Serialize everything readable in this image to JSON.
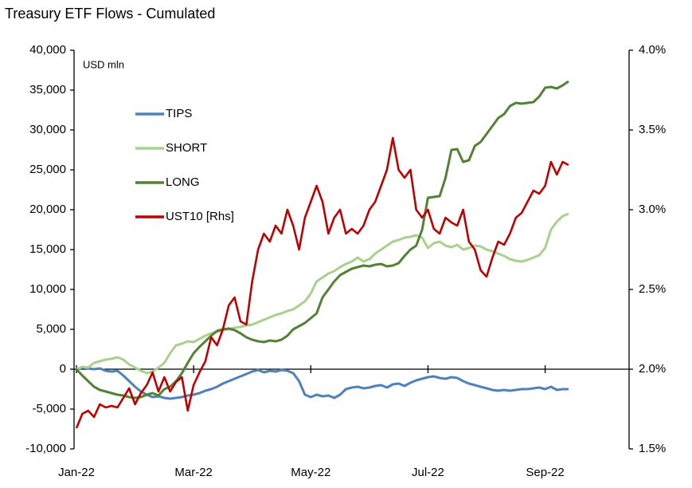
{
  "chart_data": {
    "type": "line",
    "title": "Treasury ETF Flows - Cumulated",
    "y_label": "USD mln",
    "legend": "upper-left",
    "categories": [
      "Jan-22",
      null,
      null,
      null,
      null,
      null,
      null,
      null,
      null,
      null,
      null,
      null,
      null,
      null,
      null,
      null,
      null,
      null,
      null,
      null,
      "Mar-22",
      null,
      null,
      null,
      null,
      null,
      null,
      null,
      null,
      null,
      null,
      null,
      null,
      null,
      null,
      null,
      null,
      null,
      null,
      null,
      "May-22",
      null,
      null,
      null,
      null,
      null,
      null,
      null,
      null,
      null,
      null,
      null,
      null,
      null,
      null,
      null,
      null,
      null,
      null,
      null,
      "Jul-22",
      null,
      null,
      null,
      null,
      null,
      null,
      null,
      null,
      null,
      null,
      null,
      null,
      null,
      null,
      null,
      null,
      null,
      null,
      null,
      "Sep-22",
      null,
      null,
      null,
      null
    ],
    "ylim": [
      -10000,
      40000
    ],
    "yticks": [
      {
        "value": -10000,
        "label": "-10,000"
      },
      {
        "value": -5000,
        "label": "-5,000"
      },
      0,
      {
        "value": 5000,
        "label": "5,000"
      },
      {
        "value": 10000,
        "label": "10,000"
      },
      {
        "value": 15000,
        "label": "15,000"
      },
      {
        "value": 20000,
        "label": "20,000"
      },
      {
        "value": 25000,
        "label": "25,000"
      },
      {
        "value": 30000,
        "label": "30,000"
      },
      {
        "value": 35000,
        "label": "35,000"
      },
      {
        "value": 40000,
        "label": "40,000"
      }
    ],
    "y2lim": [
      1.5,
      4.0
    ],
    "y2ticks": [
      {
        "value": 1.5,
        "label": "1.5%"
      },
      {
        "value": 2.0,
        "label": "2.0%"
      },
      {
        "value": 2.5,
        "label": "2.5%"
      },
      {
        "value": 3.0,
        "label": "3.0%"
      },
      {
        "value": 3.5,
        "label": "3.5%"
      },
      {
        "value": 4.0,
        "label": "4.0%"
      }
    ],
    "series": [
      {
        "name": "TIPS",
        "color": "#4f81bd",
        "values": [
          0,
          200,
          100,
          0,
          100,
          -200,
          -300,
          -200,
          -800,
          -1500,
          -2200,
          -2800,
          -3200,
          -3500,
          -3400,
          -3600,
          -3700,
          -3600,
          -3500,
          -3300,
          -3200,
          -3000,
          -2700,
          -2500,
          -2200,
          -1800,
          -1500,
          -1200,
          -900,
          -600,
          -300,
          -100,
          -400,
          -200,
          -300,
          -100,
          -200,
          -500,
          -1500,
          -3200,
          -3500,
          -3200,
          -3400,
          -3300,
          -3600,
          -3200,
          -2500,
          -2300,
          -2200,
          -2400,
          -2300,
          -2100,
          -2000,
          -2300,
          -1900,
          -1800,
          -2100,
          -1700,
          -1400,
          -1200,
          -1000,
          -900,
          -1100,
          -1200,
          -1000,
          -1100,
          -1500,
          -1800,
          -2000,
          -2200,
          -2400,
          -2600,
          -2700,
          -2600,
          -2700,
          -2600,
          -2500,
          -2500,
          -2400,
          -2300,
          -2500,
          -2200,
          -2600,
          -2500,
          -2500
        ]
      },
      {
        "name": "SHORT",
        "color": "#a9d18e",
        "values": [
          0,
          300,
          200,
          800,
          1000,
          1200,
          1300,
          1500,
          1200,
          600,
          200,
          -200,
          -500,
          -300,
          200,
          800,
          2000,
          3000,
          3200,
          3500,
          3400,
          3800,
          4200,
          4500,
          4700,
          4900,
          5000,
          5200,
          5300,
          5500,
          5600,
          5900,
          6200,
          6500,
          6800,
          7000,
          7300,
          7500,
          8000,
          8500,
          9500,
          11000,
          11500,
          12000,
          12300,
          12800,
          13200,
          13500,
          14000,
          13500,
          13800,
          14500,
          15000,
          15500,
          16000,
          16200,
          16500,
          16600,
          16800,
          16500,
          15200,
          15800,
          16000,
          15500,
          15300,
          15600,
          15000,
          15200,
          15500,
          15400,
          15000,
          14800,
          14500,
          14200,
          13800,
          13600,
          13500,
          13700,
          14000,
          14300,
          15200,
          17500,
          18500,
          19200,
          19500
        ]
      },
      {
        "name": "LONG",
        "color": "#548235",
        "values": [
          0,
          -800,
          -1500,
          -2200,
          -2600,
          -2800,
          -3000,
          -3200,
          -3300,
          -3500,
          -3600,
          -3500,
          -3200,
          -3000,
          -3300,
          -2500,
          -2200,
          -1500,
          -500,
          800,
          2000,
          2800,
          3500,
          4200,
          4800,
          5000,
          5100,
          4900,
          4500,
          4000,
          3700,
          3500,
          3400,
          3600,
          3500,
          3700,
          4200,
          5000,
          5400,
          5800,
          6400,
          7000,
          9000,
          10000,
          11000,
          11800,
          12200,
          12600,
          12800,
          13000,
          12900,
          13100,
          13200,
          12900,
          13000,
          13300,
          14200,
          15000,
          15500,
          17500,
          21500,
          21600,
          21700,
          24000,
          27500,
          27600,
          26000,
          26200,
          28000,
          28500,
          29500,
          30500,
          31500,
          32000,
          33000,
          33400,
          33300,
          33400,
          33500,
          34200,
          35300,
          35400,
          35200,
          35600,
          36100
        ]
      },
      {
        "name": "UST10 [Rhs]",
        "color": "#c00000",
        "axis": "y2",
        "values": [
          1.63,
          1.72,
          1.74,
          1.7,
          1.78,
          1.76,
          1.77,
          1.76,
          1.82,
          1.88,
          1.78,
          1.85,
          1.9,
          1.98,
          1.86,
          1.95,
          1.86,
          1.92,
          1.95,
          1.74,
          1.9,
          1.98,
          2.05,
          2.2,
          2.15,
          2.25,
          2.4,
          2.45,
          2.3,
          2.28,
          2.55,
          2.75,
          2.85,
          2.8,
          2.9,
          2.85,
          3.0,
          2.9,
          2.75,
          2.95,
          3.05,
          3.15,
          3.05,
          2.85,
          2.95,
          3.0,
          2.85,
          2.88,
          2.85,
          2.9,
          3.0,
          3.05,
          3.15,
          3.25,
          3.45,
          3.25,
          3.2,
          3.25,
          3.0,
          2.95,
          3.0,
          2.88,
          2.85,
          2.95,
          2.92,
          2.9,
          3.0,
          2.8,
          2.75,
          2.62,
          2.58,
          2.7,
          2.8,
          2.78,
          2.85,
          2.95,
          2.98,
          3.05,
          3.12,
          3.1,
          3.15,
          3.3,
          3.22,
          3.3,
          3.28
        ]
      }
    ]
  }
}
